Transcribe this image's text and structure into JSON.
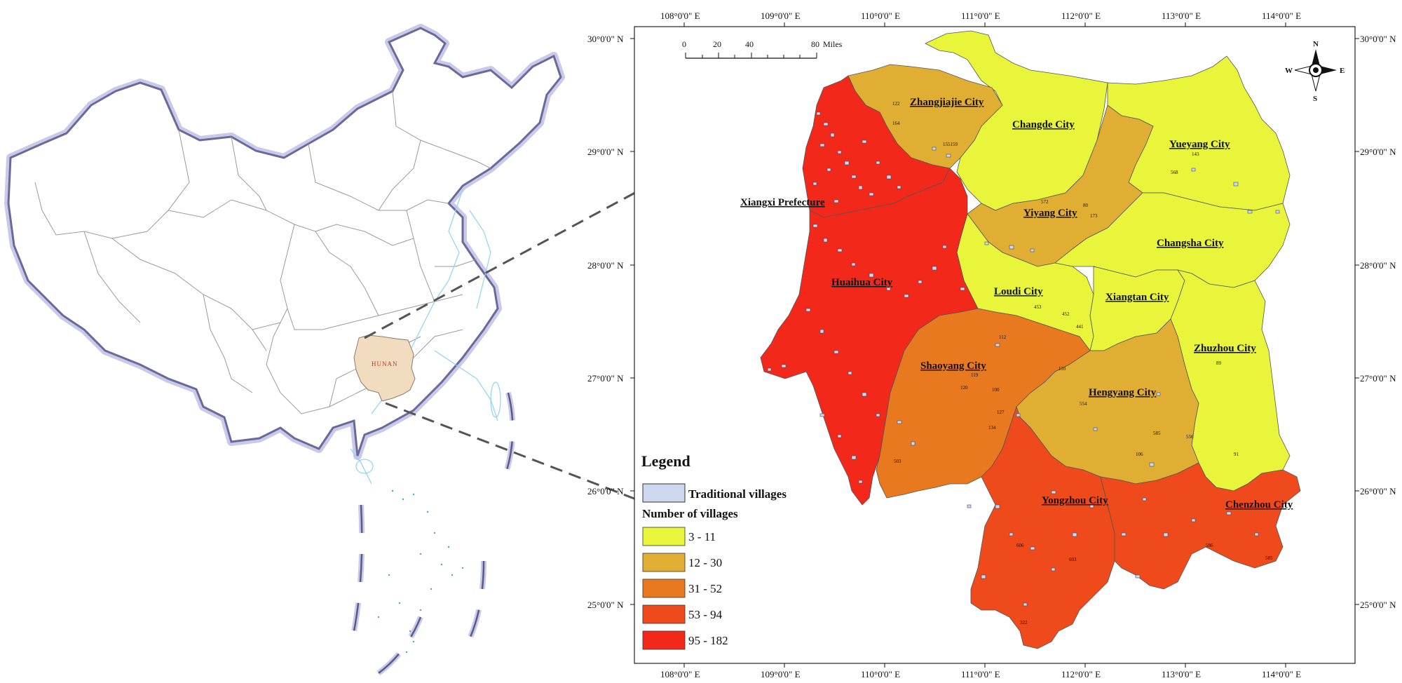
{
  "inset": {
    "hunan_label": "HUNAN"
  },
  "main_map": {
    "lon_labels": [
      "108°0'0\" E",
      "109°0'0\" E",
      "110°0'0\" E",
      "111°0'0\" E",
      "112°0'0\" E",
      "113°0'0\" E",
      "114°0'0\" E"
    ],
    "lat_labels": [
      "30°0'0\" N",
      "29°0'0\" N",
      "28°0'0\" N",
      "27°0'0\" N",
      "26°0'0\" N",
      "25°0'0\" N"
    ],
    "scale_bar": {
      "labels": [
        "0",
        "20",
        "40",
        "80"
      ],
      "unit": "Miles"
    },
    "north_arrow": {
      "n": "N",
      "s": "S",
      "e": "E",
      "w": "W"
    },
    "cities": [
      {
        "name": "Zhangjiajie City",
        "class": "12 - 30"
      },
      {
        "name": "Changde City",
        "class": "3 - 11"
      },
      {
        "name": "Yueyang City",
        "class": "3 - 11"
      },
      {
        "name": "Xiangxi Prefecture",
        "class": "95 - 182"
      },
      {
        "name": "Yiyang City",
        "class": "12 - 30"
      },
      {
        "name": "Changsha City",
        "class": "3 - 11"
      },
      {
        "name": "Huaihua City",
        "class": "95 - 182"
      },
      {
        "name": "Loudi City",
        "class": "3 - 11"
      },
      {
        "name": "Xiangtan City",
        "class": "3 - 11"
      },
      {
        "name": "Zhuzhou City",
        "class": "3 - 11"
      },
      {
        "name": "Shaoyang City",
        "class": "31 - 52"
      },
      {
        "name": "Hengyang City",
        "class": "12 - 30"
      },
      {
        "name": "Yongzhou City",
        "class": "53 - 94"
      },
      {
        "name": "Chenzhou City",
        "class": "53 - 94"
      }
    ]
  },
  "legend": {
    "title": "Legend",
    "village_label": "Traditional villages",
    "count_title": "Number of villages",
    "classes": [
      {
        "label": "3 - 11",
        "color": "#e8f53a"
      },
      {
        "label": "12 - 30",
        "color": "#e0ae33"
      },
      {
        "label": "31 - 52",
        "color": "#e8791f"
      },
      {
        "label": "53 - 94",
        "color": "#ee4a1c"
      },
      {
        "label": "95 - 182",
        "color": "#f2281a"
      }
    ]
  }
}
